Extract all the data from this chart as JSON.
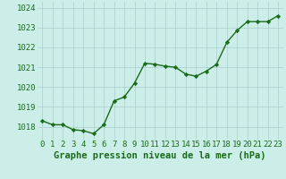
{
  "x": [
    0,
    1,
    2,
    3,
    4,
    5,
    6,
    7,
    8,
    9,
    10,
    11,
    12,
    13,
    14,
    15,
    16,
    17,
    18,
    19,
    20,
    21,
    22,
    23
  ],
  "y": [
    1018.3,
    1018.1,
    1018.1,
    1017.85,
    1017.8,
    1017.65,
    1018.1,
    1019.3,
    1019.5,
    1020.2,
    1021.2,
    1021.15,
    1021.05,
    1021.0,
    1020.65,
    1020.55,
    1020.8,
    1021.15,
    1022.25,
    1022.85,
    1023.3,
    1023.3,
    1023.3,
    1023.6
  ],
  "line_color": "#1a6b1a",
  "marker": "D",
  "marker_size": 2.2,
  "bg_color": "#cceee8",
  "grid_color": "#aacccc",
  "xlabel": "Graphe pression niveau de la mer (hPa)",
  "xlabel_fontsize": 7.5,
  "xlabel_color": "#1a6b1a",
  "ylabel_ticks": [
    1018,
    1019,
    1020,
    1021,
    1022,
    1023,
    1024
  ],
  "ylim": [
    1017.35,
    1024.3
  ],
  "xlim": [
    -0.5,
    23.5
  ],
  "tick_fontsize": 6.5,
  "tick_color": "#1a6b1a",
  "linewidth": 1.0
}
